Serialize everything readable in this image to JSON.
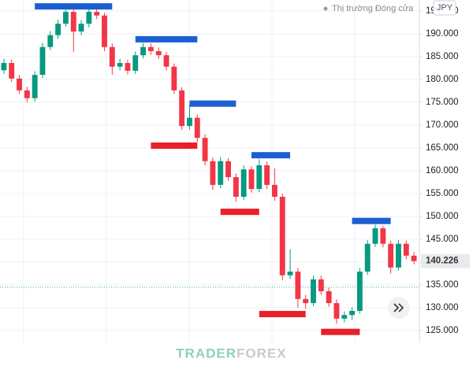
{
  "chart_data": {
    "type": "candlestick",
    "status": "Thị trường Đóng cửa",
    "currency": "JPY",
    "open": [
      182.0,
      183.6,
      180.2,
      177.6,
      175.9,
      181.0,
      187.1,
      189.7,
      192.2,
      194.8,
      190.5,
      192.2,
      194.8,
      194.0,
      187.1,
      182.8,
      183.6,
      181.9,
      185.3,
      187.1,
      186.2,
      185.3,
      182.8,
      177.6,
      169.8,
      171.6,
      167.2,
      162.1,
      156.9,
      162.1,
      158.6,
      154.3,
      160.3,
      156.0,
      161.2,
      156.9,
      154.3,
      137.1,
      137.9,
      131.9,
      131.0,
      136.2,
      133.6,
      131.0,
      127.6,
      128.4,
      129.3,
      137.9,
      144.0,
      147.4,
      144.0,
      138.8,
      144.0,
      141.4
    ],
    "high": [
      184.5,
      184.3,
      181.0,
      178.4,
      181.8,
      188.0,
      190.6,
      193.1,
      195.6,
      195.5,
      193.0,
      195.6,
      195.5,
      194.6,
      187.9,
      184.5,
      184.3,
      186.1,
      188.0,
      187.9,
      187.0,
      186.0,
      183.5,
      178.3,
      174.5,
      172.3,
      168.0,
      162.9,
      163.0,
      162.8,
      159.4,
      161.2,
      161.0,
      162.5,
      162.0,
      160.5,
      155.0,
      142.8,
      138.7,
      132.8,
      137.0,
      137.0,
      134.4,
      131.8,
      129.2,
      130.1,
      138.7,
      144.8,
      148.2,
      148.0,
      144.7,
      144.8,
      144.7,
      142.2
    ],
    "low": [
      181.2,
      179.4,
      176.8,
      175.0,
      175.2,
      180.3,
      186.4,
      188.9,
      191.5,
      186.0,
      189.7,
      191.4,
      193.2,
      186.2,
      181.0,
      182.0,
      181.1,
      181.2,
      184.6,
      185.4,
      184.5,
      182.0,
      176.8,
      168.9,
      169.0,
      166.3,
      161.2,
      155.8,
      156.2,
      157.8,
      153.2,
      153.6,
      155.2,
      155.3,
      156.0,
      153.4,
      136.0,
      136.3,
      130.0,
      129.8,
      130.3,
      132.8,
      130.2,
      126.5,
      126.8,
      127.3,
      128.7,
      137.2,
      143.3,
      143.2,
      137.5,
      138.1,
      140.6,
      139.5
    ],
    "close": [
      183.6,
      180.2,
      177.6,
      175.9,
      181.0,
      187.1,
      189.7,
      192.2,
      194.8,
      190.5,
      192.2,
      194.8,
      194.0,
      187.1,
      182.8,
      183.6,
      181.9,
      185.3,
      187.1,
      186.2,
      185.3,
      182.8,
      177.6,
      169.8,
      171.6,
      167.2,
      162.1,
      156.9,
      162.1,
      158.6,
      154.3,
      160.3,
      156.0,
      161.2,
      156.9,
      154.3,
      137.1,
      137.9,
      131.9,
      131.0,
      136.2,
      133.6,
      131.0,
      127.6,
      128.4,
      129.3,
      137.9,
      144.0,
      147.4,
      144.0,
      138.8,
      144.0,
      141.4,
      140.2
    ],
    "up_color": "#089981",
    "down_color": "#f23645",
    "ylim": [
      122.4,
      197.4
    ],
    "yticks": [
      {
        "value": 125,
        "label": "125.000"
      },
      {
        "value": 130,
        "label": "130.000"
      },
      {
        "value": 135,
        "label": "135.000"
      },
      {
        "value": 140,
        "label": "140.000"
      },
      {
        "value": 145,
        "label": "145.000"
      },
      {
        "value": 150,
        "label": "150.000"
      },
      {
        "value": 155,
        "label": "155.000"
      },
      {
        "value": 160,
        "label": "160.000"
      },
      {
        "value": 165,
        "label": "165.000"
      },
      {
        "value": 170,
        "label": "170.000"
      },
      {
        "value": 175,
        "label": "175.000"
      },
      {
        "value": 180,
        "label": "180.000"
      },
      {
        "value": 185,
        "label": "185.000"
      },
      {
        "value": 190,
        "label": "190.000"
      },
      {
        "value": 195,
        "label": "195.000"
      }
    ],
    "last_price": 140.226,
    "reference_line": 134.5,
    "levels": [
      {
        "value": 196.0,
        "from": 4,
        "to": 14,
        "color": "#1c5fd1"
      },
      {
        "value": 188.8,
        "from": 17,
        "to": 25,
        "color": "#1c5fd1"
      },
      {
        "value": 174.7,
        "from": 24,
        "to": 30,
        "color": "#1c5fd1"
      },
      {
        "value": 165.5,
        "from": 19,
        "to": 25,
        "color": "#e8202a"
      },
      {
        "value": 163.4,
        "from": 32,
        "to": 37,
        "color": "#1c5fd1"
      },
      {
        "value": 151.0,
        "from": 28,
        "to": 33,
        "color": "#e8202a"
      },
      {
        "value": 128.6,
        "from": 33,
        "to": 39,
        "color": "#e8202a"
      },
      {
        "value": 149.0,
        "from": 45,
        "to": 50,
        "color": "#1c5fd1"
      },
      {
        "value": 124.7,
        "from": 41,
        "to": 46,
        "color": "#e8202a"
      }
    ],
    "watermark": [
      "TRADER",
      "FOREX"
    ]
  }
}
